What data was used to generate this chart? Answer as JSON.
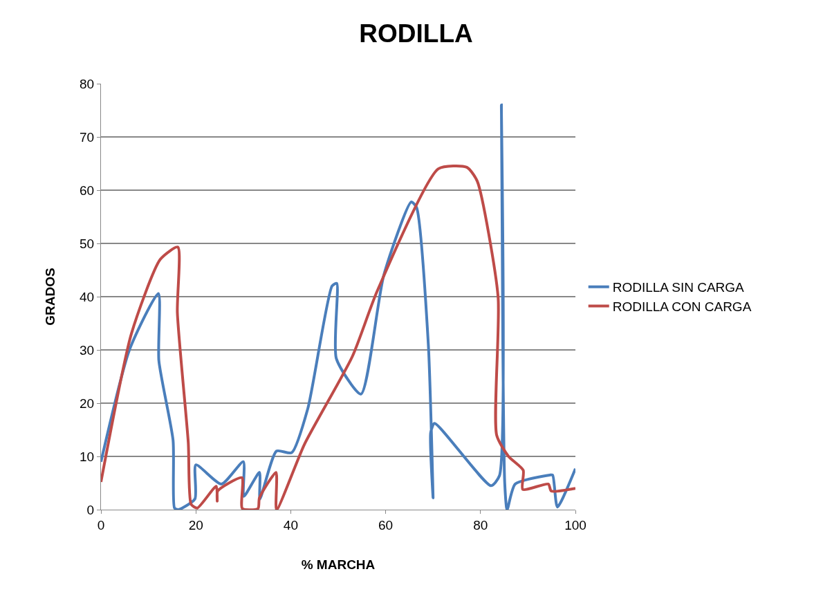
{
  "chart_data": {
    "type": "line",
    "title": "RODILLA",
    "xlabel": "% MARCHA",
    "ylabel": "GRADOS",
    "xlim": [
      0,
      100
    ],
    "xticks": [
      0,
      20,
      40,
      60,
      80,
      100
    ],
    "ylim": [
      0,
      80
    ],
    "yticks": [
      0,
      10,
      20,
      30,
      40,
      50,
      60,
      70,
      80
    ],
    "grid": "y",
    "legend": "right",
    "marker": "none",
    "line_style": "solid",
    "series": [
      {
        "name": "RODILLA SIN CARGA",
        "color": "#4a7ebb",
        "x": [
          0,
          6,
          12.1,
          12.2,
          15.2,
          15.5,
          16.3,
          19.8,
          20,
          25.4,
          30,
          30.1,
          33.4,
          33.5,
          37,
          40.2,
          43.6,
          48.7,
          49.7,
          49.6,
          54.8,
          59.6,
          65.4,
          66.5,
          69,
          70,
          69.5,
          70.3,
          82.2,
          84,
          84.4,
          84.7,
          85.1,
          85.6,
          87.3,
          94.6,
          95.2,
          96.2,
          100
        ],
        "values": [
          9,
          30,
          40.6,
          28,
          13,
          0.3,
          0,
          2,
          8.4,
          4.8,
          9,
          2.5,
          7,
          2,
          11,
          10.7,
          19,
          42,
          42.5,
          28.4,
          21.7,
          44,
          57.8,
          56.8,
          31,
          2.2,
          14.5,
          16.2,
          4.5,
          6.4,
          76,
          31,
          5,
          0,
          4.8,
          6.5,
          6.5,
          0.5,
          7.7
        ]
      },
      {
        "name": "RODILLA CON CARGA",
        "color": "#be4b48",
        "x": [
          0,
          6.4,
          12.5,
          16.2,
          16.1,
          18.4,
          19,
          20.3,
          24.3,
          24.5,
          24.6,
          29.7,
          29.8,
          33.1,
          33.4,
          36.9,
          37,
          42.9,
          53,
          58.2,
          71.1,
          77.1,
          79.3,
          83.7,
          83.4,
          85.9,
          89,
          88.9,
          94.3,
          94.9,
          100
        ],
        "values": [
          5.2,
          33,
          47,
          49.3,
          37,
          12.6,
          1,
          0.3,
          4.4,
          1.6,
          3.5,
          6,
          0.2,
          0.2,
          2.2,
          7,
          0,
          12.3,
          28.8,
          41,
          64,
          64.3,
          61.7,
          40,
          14,
          10,
          7.4,
          3.8,
          4.8,
          3.5,
          4
        ]
      }
    ]
  }
}
